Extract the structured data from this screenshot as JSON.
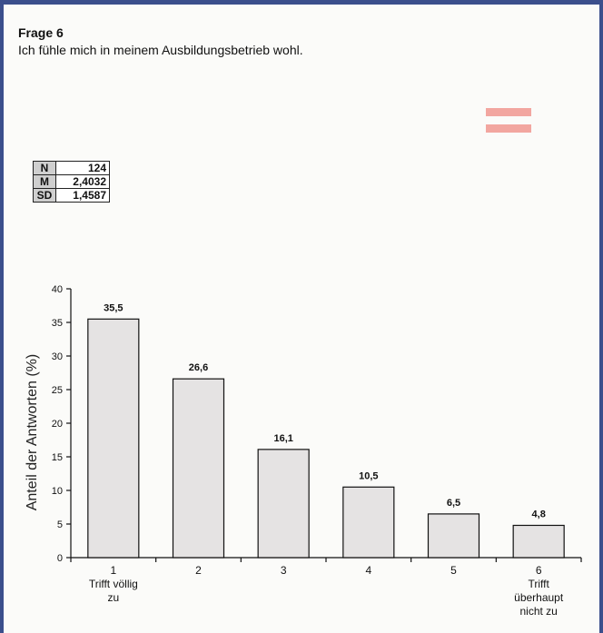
{
  "question": {
    "title": "Frage 6",
    "text": "Ich fühle mich in meinem Ausbildungsbetrieb wohl."
  },
  "stats": [
    {
      "key": "N",
      "value": "124"
    },
    {
      "key": "M",
      "value": "2,4032"
    },
    {
      "key": "SD",
      "value": "1,4587"
    }
  ],
  "colors": {
    "frame": "#3b4f8c",
    "bar_fill": "#e5e3e3",
    "accent_stripes": "#f2a6a0"
  },
  "chart_data": {
    "type": "bar",
    "categories": [
      "1",
      "2",
      "3",
      "4",
      "5",
      "6"
    ],
    "category_sublabels": [
      [
        "Trifft völlig",
        "zu"
      ],
      [],
      [],
      [],
      [],
      [
        "Trifft",
        "überhaupt",
        "nicht zu"
      ]
    ],
    "values": [
      35.5,
      26.6,
      16.1,
      10.5,
      6.5,
      4.8
    ],
    "value_labels": [
      "35,5",
      "26,6",
      "16,1",
      "10,5",
      "6,5",
      "4,8"
    ],
    "ylabel": "Anteil der Antworten (%)",
    "xlabel": "",
    "ylim": [
      0,
      40
    ],
    "yticks": [
      0,
      5,
      10,
      15,
      20,
      25,
      30,
      35,
      40
    ],
    "grid": false
  }
}
